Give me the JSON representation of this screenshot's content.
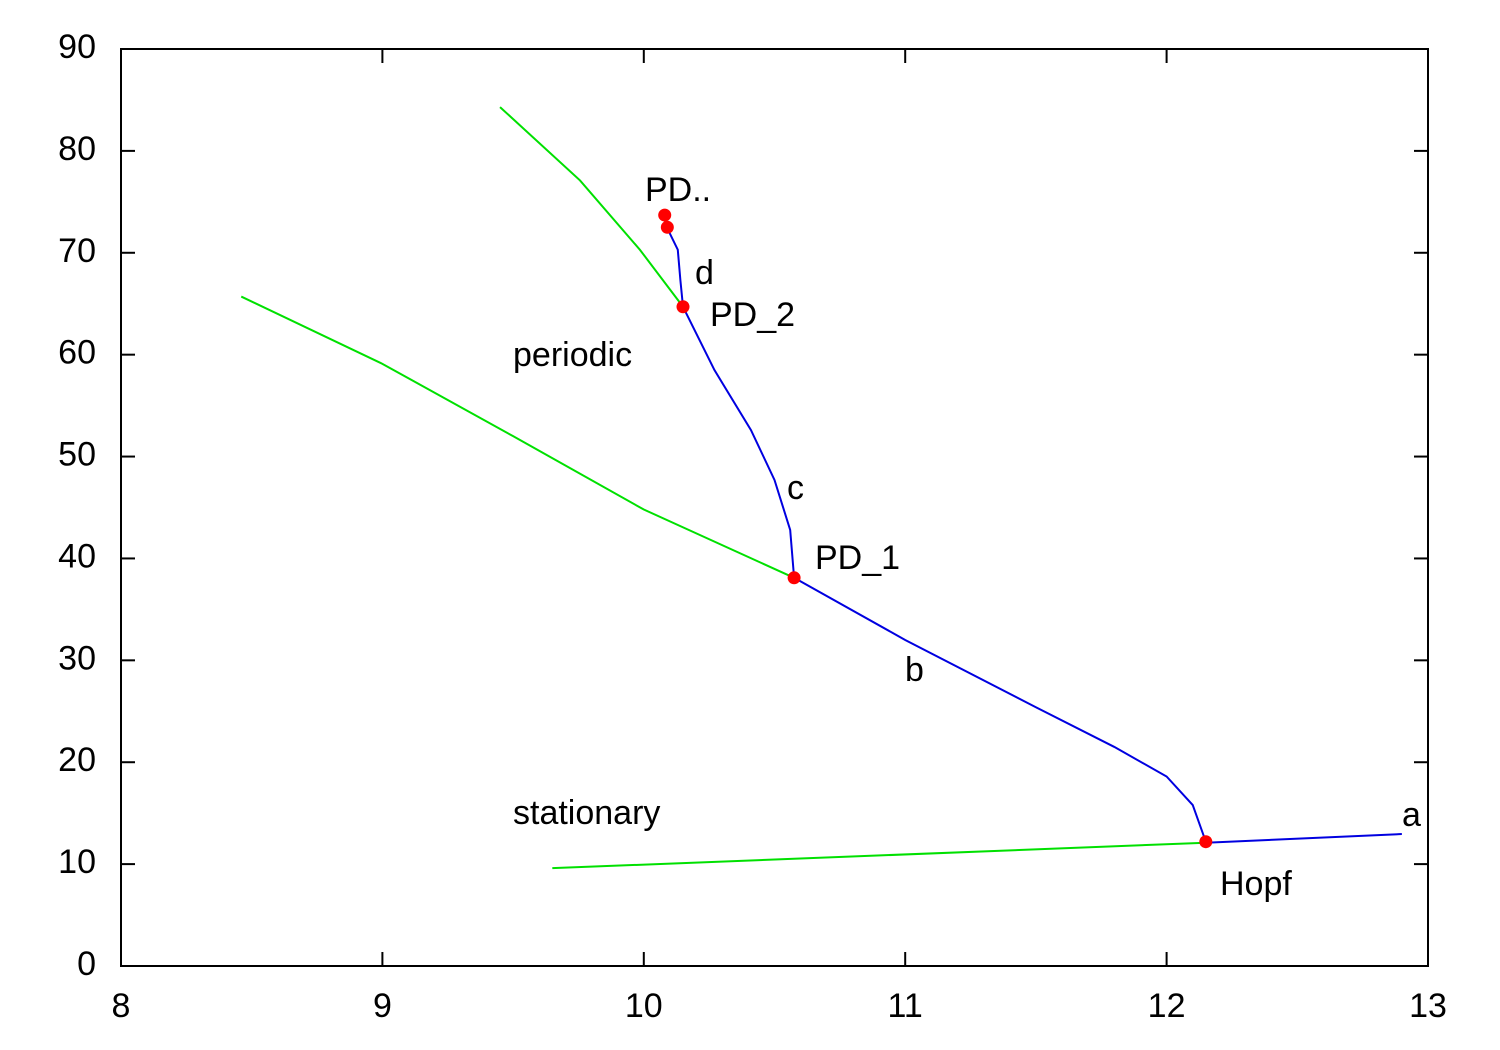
{
  "chart_data": {
    "type": "line",
    "xlim": [
      8,
      13
    ],
    "ylim": [
      0,
      90
    ],
    "xticks": [
      8,
      9,
      10,
      11,
      12,
      13
    ],
    "yticks": [
      0,
      10,
      20,
      30,
      40,
      50,
      60,
      70,
      80,
      90
    ],
    "grid": false,
    "series": [
      {
        "type": "line",
        "color": "#00e000",
        "x": [
          9.65,
          12.15
        ],
        "values": [
          9.6,
          12.1
        ]
      },
      {
        "type": "line",
        "color": "#0000e0",
        "x": [
          12.15,
          12.9
        ],
        "values": [
          12.1,
          12.95
        ]
      },
      {
        "type": "line",
        "color": "#00e000",
        "x": [
          8.46,
          9,
          9.5,
          10,
          10.575
        ],
        "values": [
          65.7,
          59.1,
          52.0,
          44.8,
          38.1
        ]
      },
      {
        "type": "line",
        "color": "#0000e0",
        "x": [
          10.575,
          11,
          11.5,
          11.8,
          12.0,
          12.1,
          12.15
        ],
        "values": [
          38.1,
          32.0,
          25.4,
          21.5,
          18.6,
          15.8,
          12.2
        ]
      },
      {
        "type": "line",
        "color": "#0000e0",
        "x": [
          10.575,
          10.56,
          10.5,
          10.41,
          10.27,
          10.15
        ],
        "values": [
          38.1,
          42.8,
          47.7,
          52.6,
          58.5,
          64.7
        ]
      },
      {
        "type": "line",
        "color": "#0000e0",
        "x": [
          10.15,
          10.14,
          10.13,
          10.09
        ],
        "values": [
          64.7,
          67.3,
          70.3,
          72.4
        ]
      },
      {
        "type": "line",
        "color": "#00e000",
        "x": [
          9.45,
          9.756,
          9.985,
          10.15
        ],
        "values": [
          84.3,
          77.1,
          70.3,
          64.7
        ]
      },
      {
        "type": "scatter",
        "color": "#ff0000",
        "x": [
          10.08,
          10.09,
          10.15,
          10.575,
          12.15
        ],
        "values": [
          73.7,
          72.5,
          64.7,
          38.1,
          12.2
        ]
      }
    ],
    "annotations": [
      "PD..",
      "d",
      "PD_2",
      "periodic",
      "c",
      "PD_1",
      "b",
      "stationary",
      "a",
      "Hopf"
    ]
  }
}
